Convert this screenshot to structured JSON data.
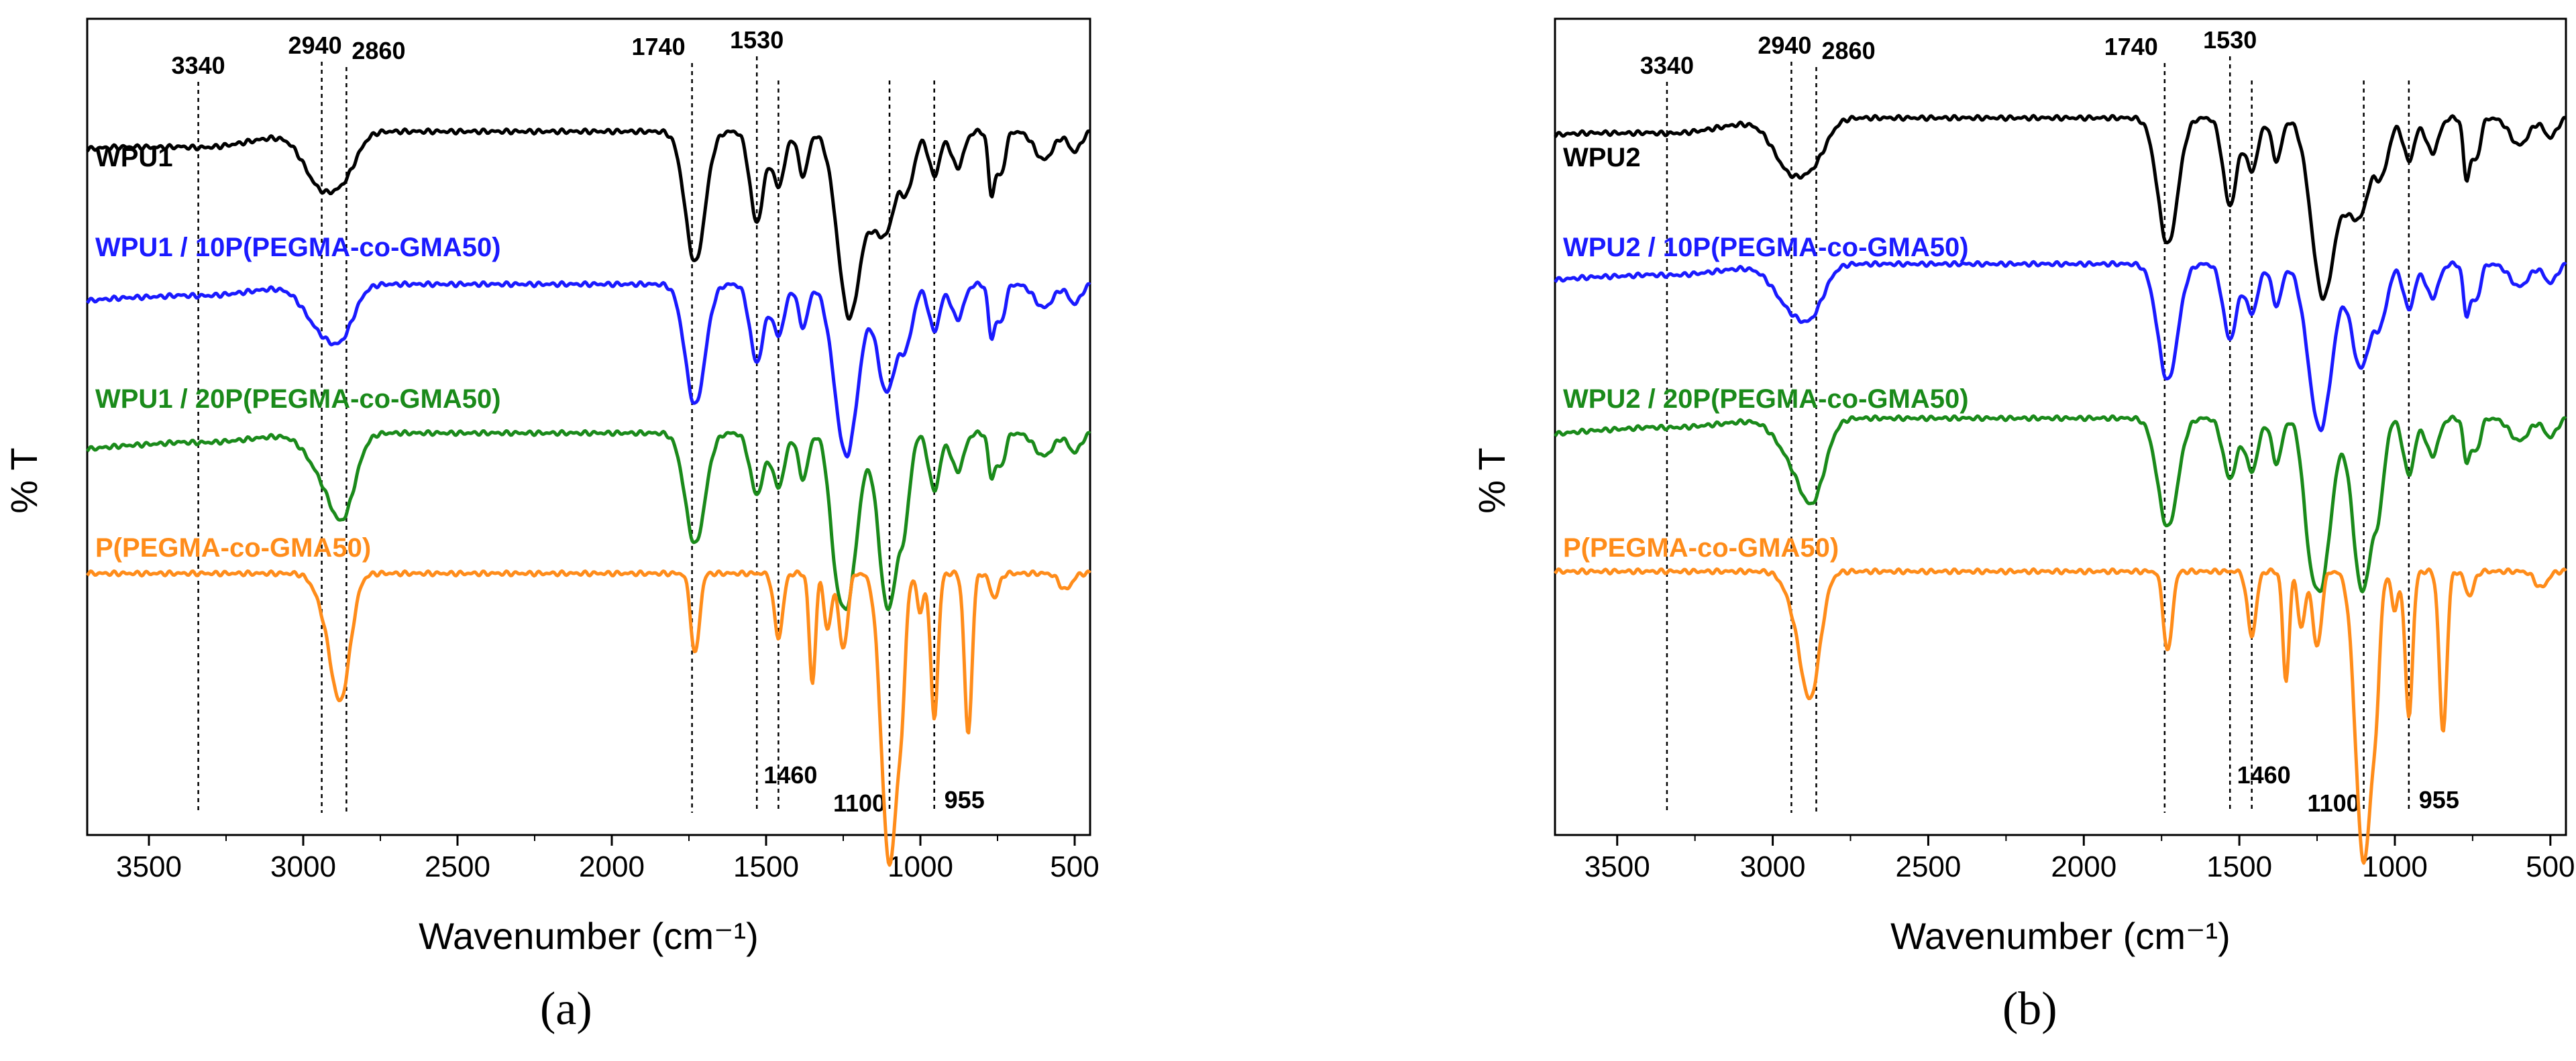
{
  "figure": {
    "caption_a": "(a)",
    "caption_b": "(b)"
  },
  "chart_data": [
    {
      "type": "line",
      "panel": "a",
      "xlabel": "Wavenumber (cm⁻¹)",
      "ylabel": "% T",
      "xlim": [
        3700,
        450
      ],
      "xticks": [
        3500,
        3000,
        2500,
        2000,
        1500,
        1000,
        500
      ],
      "yticks_shown": false,
      "reference_lines": [
        {
          "label": "3340",
          "x": 3340
        },
        {
          "label": "2940",
          "x": 2940
        },
        {
          "label": "2860",
          "x": 2860
        },
        {
          "label": "1740",
          "x": 1740
        },
        {
          "label": "1530",
          "x": 1530
        },
        {
          "label": "1460",
          "x": 1460
        },
        {
          "label": "1100",
          "x": 1100
        },
        {
          "label": "955",
          "x": 955
        }
      ],
      "series": [
        {
          "name": "WPU1",
          "color": "#000000",
          "offset": 0,
          "shape": "wpu"
        },
        {
          "name": "WPU1 / 10P(PEGMA-co-GMA50)",
          "color": "#1a1aff",
          "offset": 1,
          "shape": "mix10"
        },
        {
          "name": "WPU1 / 20P(PEGMA-co-GMA50)",
          "color": "#1a8a1a",
          "offset": 2,
          "shape": "mix20"
        },
        {
          "name": "P(PEGMA-co-GMA50)",
          "color": "#ff8c1a",
          "offset": 3,
          "shape": "peg"
        }
      ]
    },
    {
      "type": "line",
      "panel": "b",
      "xlabel": "Wavenumber (cm⁻¹)",
      "ylabel": "% T",
      "xlim": [
        3700,
        450
      ],
      "xticks": [
        3500,
        3000,
        2500,
        2000,
        1500,
        1000,
        500
      ],
      "yticks_shown": false,
      "reference_lines": [
        {
          "label": "3340",
          "x": 3340
        },
        {
          "label": "2940",
          "x": 2940
        },
        {
          "label": "2860",
          "x": 2860
        },
        {
          "label": "1740",
          "x": 1740
        },
        {
          "label": "1530",
          "x": 1530
        },
        {
          "label": "1460",
          "x": 1460
        },
        {
          "label": "1100",
          "x": 1100
        },
        {
          "label": "955",
          "x": 955
        }
      ],
      "series": [
        {
          "name": "WPU2",
          "color": "#000000",
          "offset": 0,
          "shape": "wpu"
        },
        {
          "name": "WPU2 / 10P(PEGMA-co-GMA50)",
          "color": "#1a1aff",
          "offset": 1,
          "shape": "mix10"
        },
        {
          "name": "WPU2 / 20P(PEGMA-co-GMA50)",
          "color": "#1a8a1a",
          "offset": 2,
          "shape": "mix20"
        },
        {
          "name": "P(PEGMA-co-GMA50)",
          "color": "#ff8c1a",
          "offset": 3,
          "shape": "peg"
        }
      ]
    }
  ]
}
